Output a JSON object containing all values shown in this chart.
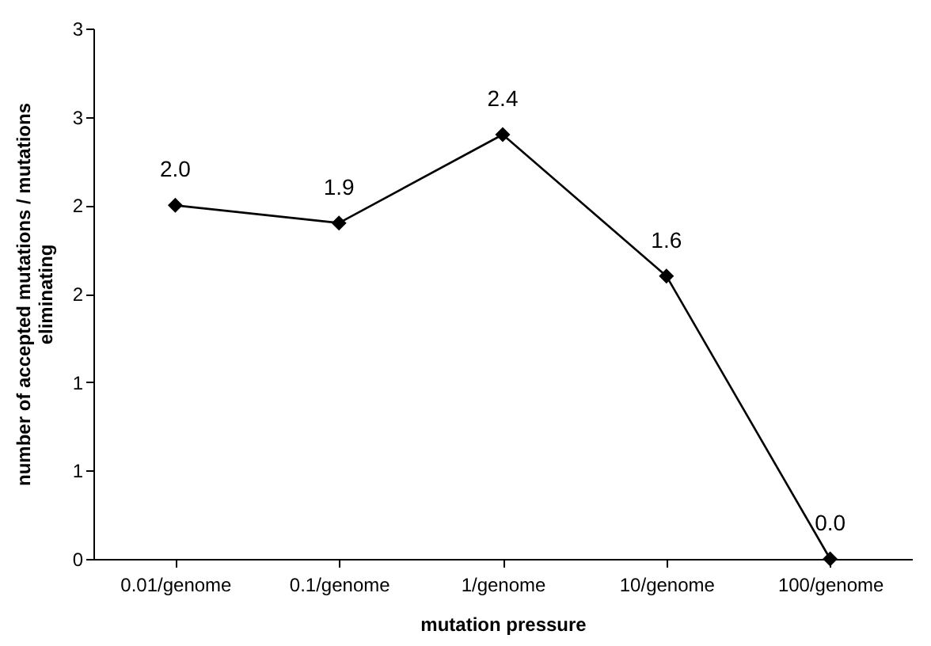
{
  "chart_data": {
    "type": "line",
    "xlabel": "mutation pressure",
    "ylabel": "number of accepted mutations / mutations\neliminating",
    "categories": [
      "0.01/genome",
      "0.1/genome",
      "1/genome",
      "10/genome",
      "100/genome"
    ],
    "series": [
      {
        "color": "#000000",
        "values": [
          2.0,
          1.9,
          2.4,
          1.6,
          0.0
        ],
        "value_labels": [
          "2.0",
          "1.9",
          "2.4",
          "1.6",
          "0.0"
        ]
      }
    ],
    "ylim": [
      0,
      3
    ],
    "yticks": [
      0,
      {
        "value": 0.5,
        "label": "1"
      },
      1,
      {
        "value": 1.5,
        "label": "2"
      },
      2,
      {
        "value": 2.5,
        "label": "3"
      },
      3
    ],
    "marker": "diamond",
    "line_style": "solid",
    "grid": false
  }
}
